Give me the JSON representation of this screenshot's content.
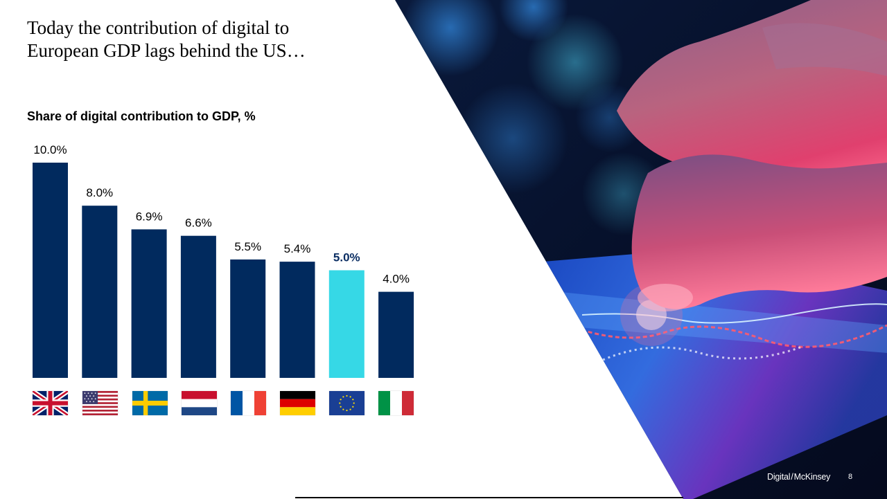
{
  "slide": {
    "title": "Today the contribution of digital to\nEuropean GDP lags behind the US…",
    "subtitle": "Share of digital contribution to GDP, %",
    "brand_left": "Digital",
    "brand_slash": "/",
    "brand_right": "McKinsey",
    "page_number": "8"
  },
  "colors": {
    "bar": "#012a5e",
    "highlight": "#36d8e6",
    "highlight_label": "#0b2e63",
    "label": "#000000"
  },
  "chart_data": {
    "type": "bar",
    "title": "Share of digital contribution to GDP, %",
    "categories": [
      "UK",
      "US",
      "Sweden",
      "Netherlands",
      "France",
      "Germany",
      "EU",
      "Italy"
    ],
    "category_icons": [
      "uk-flag-icon",
      "us-flag-icon",
      "sweden-flag-icon",
      "netherlands-flag-icon",
      "france-flag-icon",
      "germany-flag-icon",
      "eu-flag-icon",
      "italy-flag-icon"
    ],
    "values": [
      10.0,
      8.0,
      6.9,
      6.6,
      5.5,
      5.4,
      5.0,
      4.0
    ],
    "value_labels": [
      "10.0%",
      "8.0%",
      "6.9%",
      "6.6%",
      "5.5%",
      "5.4%",
      "5.0%",
      "4.0%"
    ],
    "highlight_index": 6,
    "ylim": [
      0,
      10
    ],
    "xlabel": "",
    "ylabel": "",
    "grid": false,
    "legend": "none"
  }
}
